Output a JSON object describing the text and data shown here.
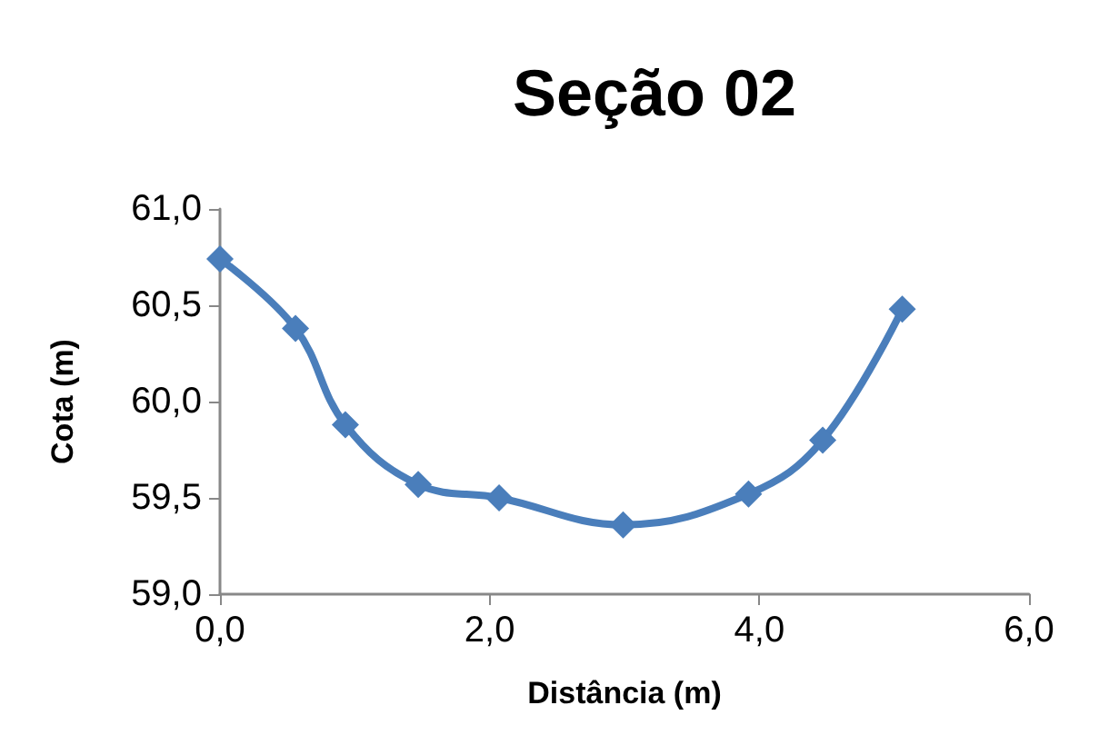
{
  "chart_data": {
    "type": "line",
    "title": "Seção 02",
    "xlabel": "Distância (m)",
    "ylabel": "Cota (m)",
    "x": [
      0,
      0.56,
      0.93,
      1.47,
      2.07,
      2.99,
      3.92,
      4.47,
      5.06
    ],
    "series": [
      {
        "color": "#4a7ebb",
        "values": [
          60.74,
          60.38,
          59.88,
          59.57,
          59.5,
          59.36,
          59.52,
          59.8,
          60.48
        ]
      }
    ],
    "xlim": [
      0,
      6
    ],
    "xticks": [
      {
        "value": 0,
        "label": "0,0"
      },
      {
        "value": 2,
        "label": "2,0"
      },
      {
        "value": 4,
        "label": "4,0"
      },
      {
        "value": 6,
        "label": "6,0"
      }
    ],
    "ylim": [
      59,
      61
    ],
    "yticks": [
      {
        "value": 59,
        "label": "59,0"
      },
      {
        "value": 59.5,
        "label": "59,5"
      },
      {
        "value": 60,
        "label": "60,0"
      },
      {
        "value": 60.5,
        "label": "60,5"
      },
      {
        "value": 61,
        "label": "61,0"
      }
    ],
    "grid": false,
    "marker": "diamond",
    "line_style": "solid"
  }
}
